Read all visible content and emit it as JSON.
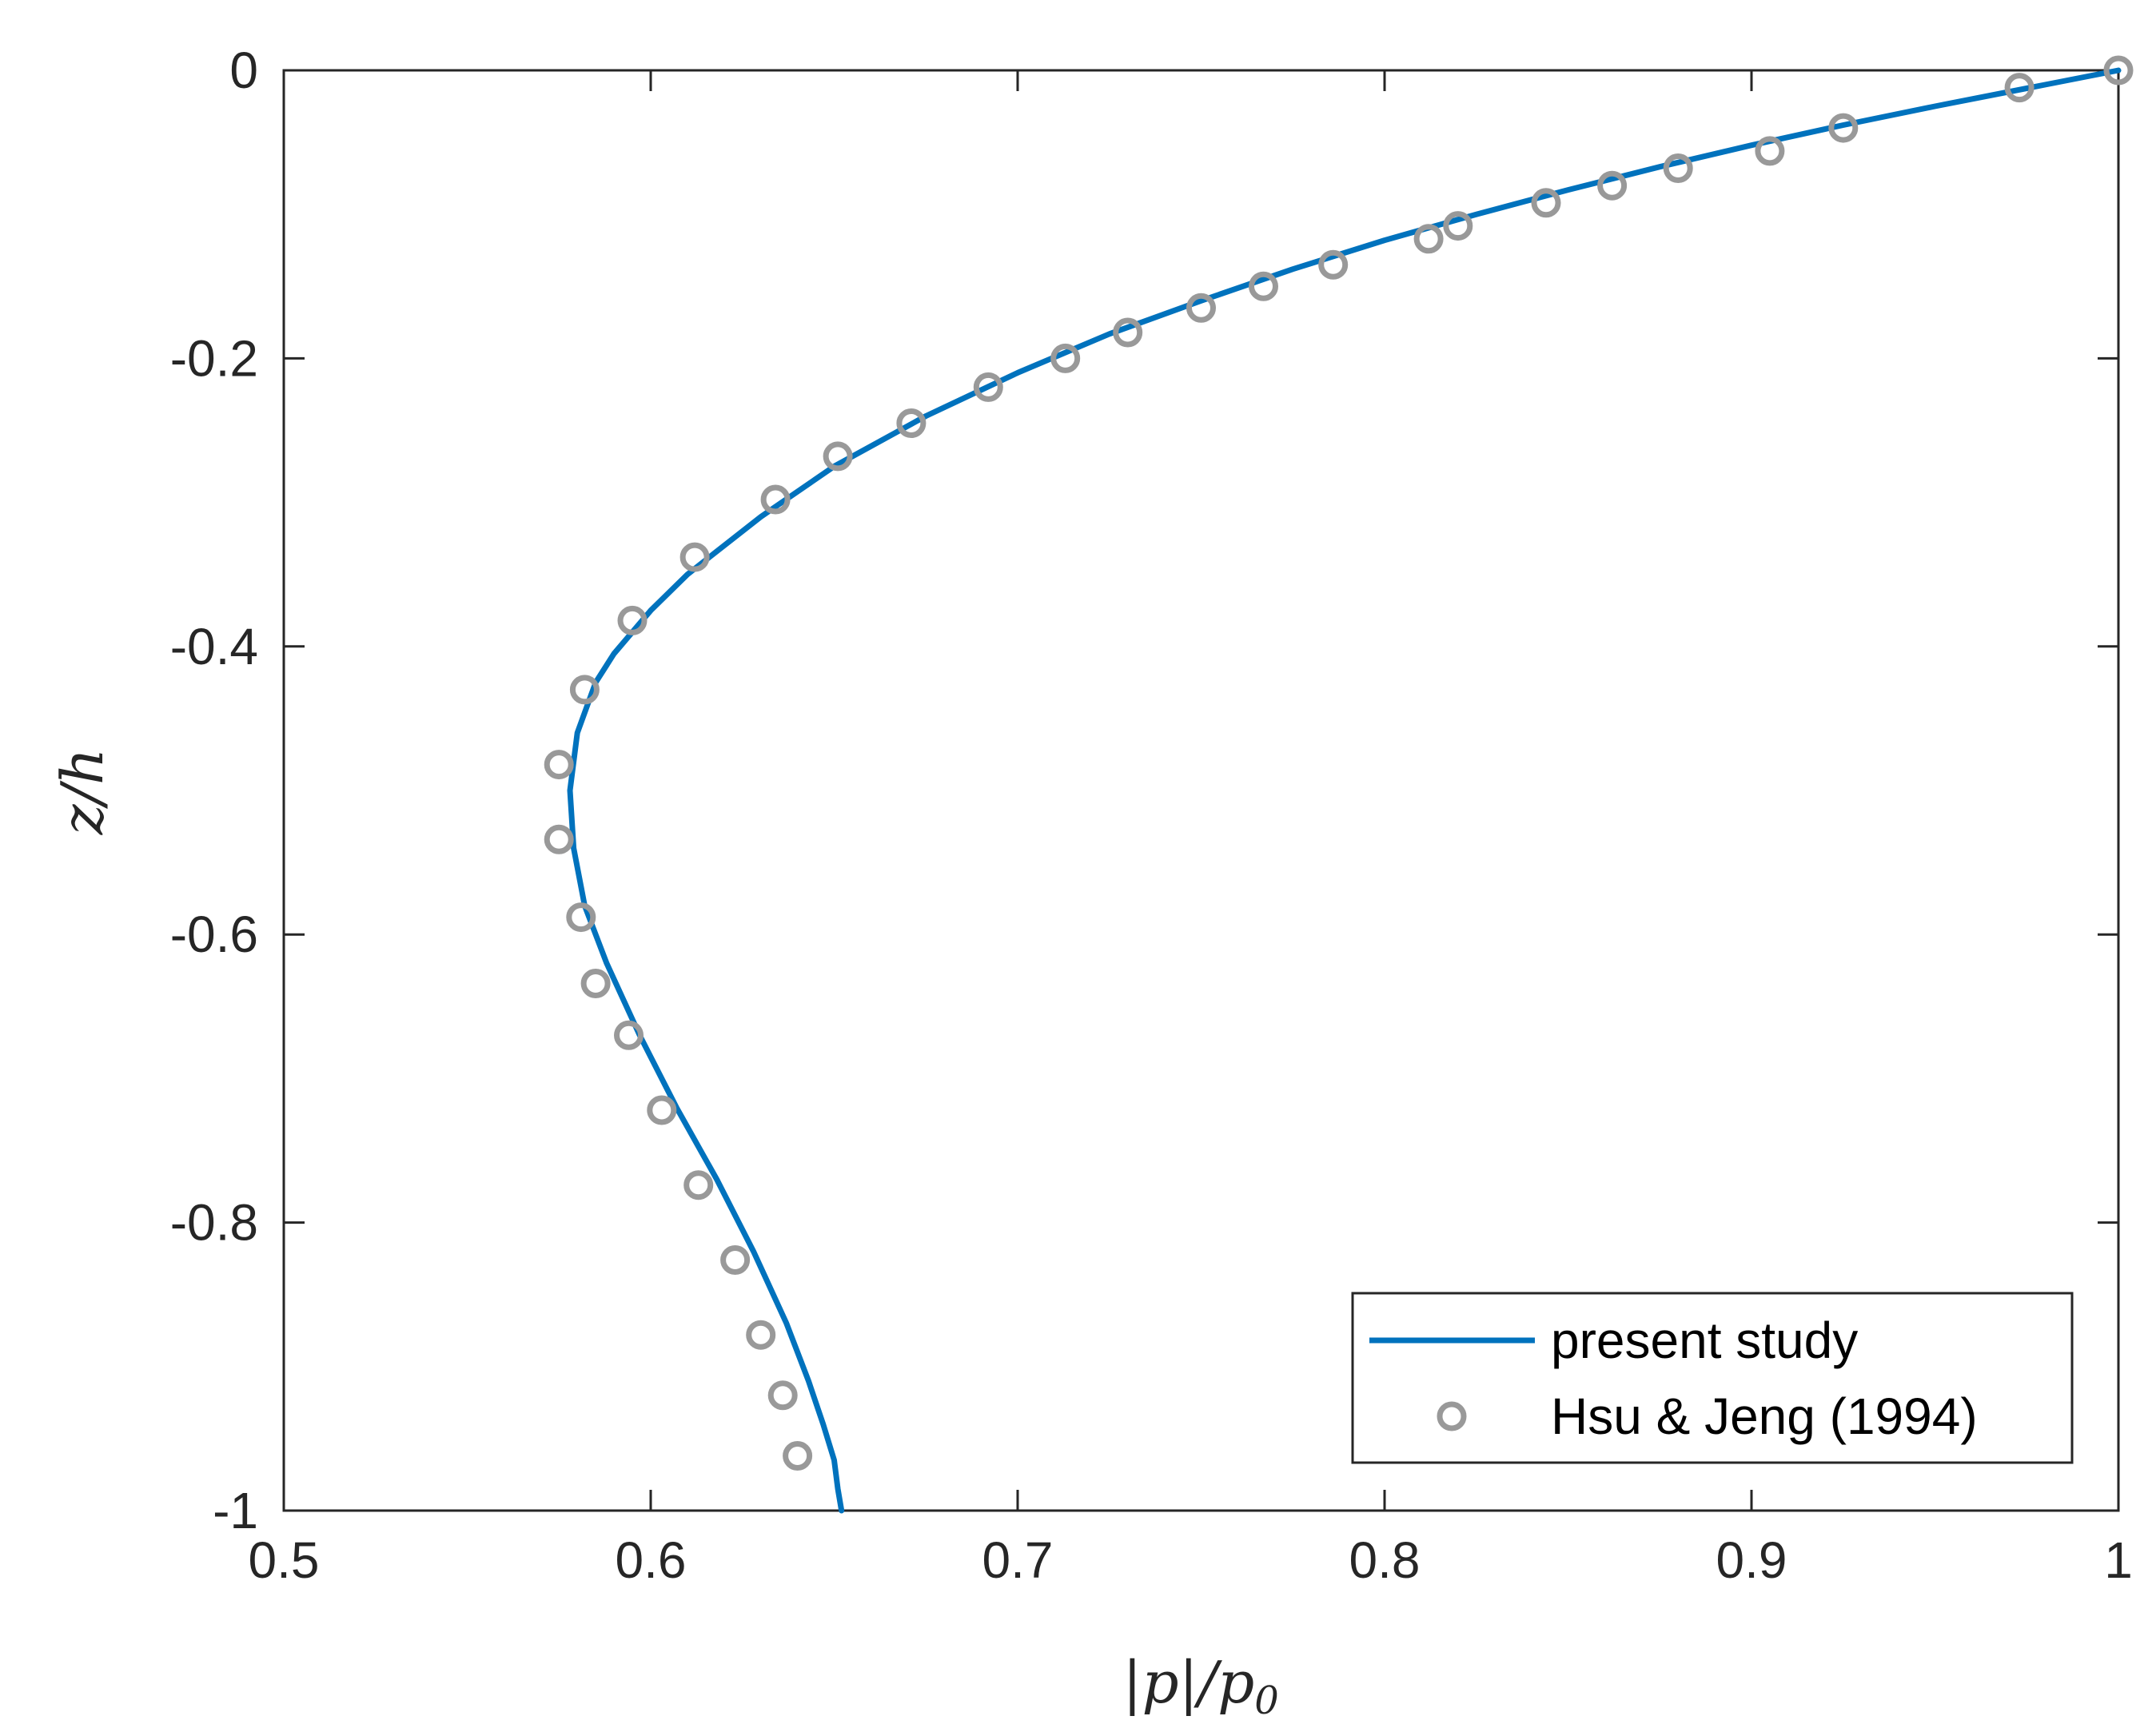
{
  "chart_data": {
    "type": "line",
    "xlabel": "|p|/p0",
    "ylabel": "z/h",
    "xlim": [
      0.5,
      1
    ],
    "ylim": [
      -1,
      0
    ],
    "xticks": [
      "0.5",
      "0.6",
      "0.7",
      "0.8",
      "0.9",
      "1"
    ],
    "yticks": [
      "0",
      "-0.2",
      "-0.4",
      "-0.6",
      "-0.8",
      "-1"
    ],
    "grid": false,
    "legend_position": "bottom-right",
    "colors": {
      "line": "#0072BD",
      "markers": "#999999",
      "axes": "#262626"
    },
    "series": [
      {
        "name": "present study",
        "style": "line",
        "x": [
          1.0,
          0.98,
          0.95,
          0.925,
          0.9,
          0.875,
          0.85,
          0.825,
          0.8,
          0.775,
          0.75,
          0.725,
          0.7,
          0.675,
          0.65,
          0.63,
          0.61,
          0.6,
          0.59,
          0.585,
          0.58,
          0.578,
          0.579,
          0.582,
          0.588,
          0.597,
          0.607,
          0.618,
          0.628,
          0.637,
          0.643,
          0.647,
          0.65,
          0.651,
          0.652
        ],
        "y": [
          0.0,
          -0.01,
          -0.025,
          -0.038,
          -0.052,
          -0.067,
          -0.083,
          -0.1,
          -0.118,
          -0.138,
          -0.16,
          -0.183,
          -0.21,
          -0.24,
          -0.275,
          -0.31,
          -0.35,
          -0.375,
          -0.405,
          -0.425,
          -0.46,
          -0.5,
          -0.54,
          -0.58,
          -0.62,
          -0.67,
          -0.72,
          -0.77,
          -0.82,
          -0.87,
          -0.91,
          -0.94,
          -0.965,
          -0.985,
          -1.0
        ]
      },
      {
        "name": "Hsu & Jeng (1994)",
        "style": "markers",
        "x": [
          1.0,
          0.973,
          0.925,
          0.905,
          0.88,
          0.862,
          0.844,
          0.82,
          0.812,
          0.786,
          0.767,
          0.75,
          0.73,
          0.713,
          0.692,
          0.671,
          0.651,
          0.634,
          0.612,
          0.595,
          0.582,
          0.575,
          0.575,
          0.581,
          0.585,
          0.594,
          0.603,
          0.613,
          0.623,
          0.63,
          0.636,
          0.64
        ],
        "y": [
          0.0,
          -0.012,
          -0.04,
          -0.056,
          -0.068,
          -0.08,
          -0.092,
          -0.108,
          -0.117,
          -0.135,
          -0.15,
          -0.165,
          -0.182,
          -0.2,
          -0.22,
          -0.245,
          -0.268,
          -0.298,
          -0.338,
          -0.382,
          -0.43,
          -0.482,
          -0.534,
          -0.588,
          -0.634,
          -0.67,
          -0.722,
          -0.774,
          -0.826,
          -0.878,
          -0.92,
          -0.962
        ]
      }
    ]
  }
}
